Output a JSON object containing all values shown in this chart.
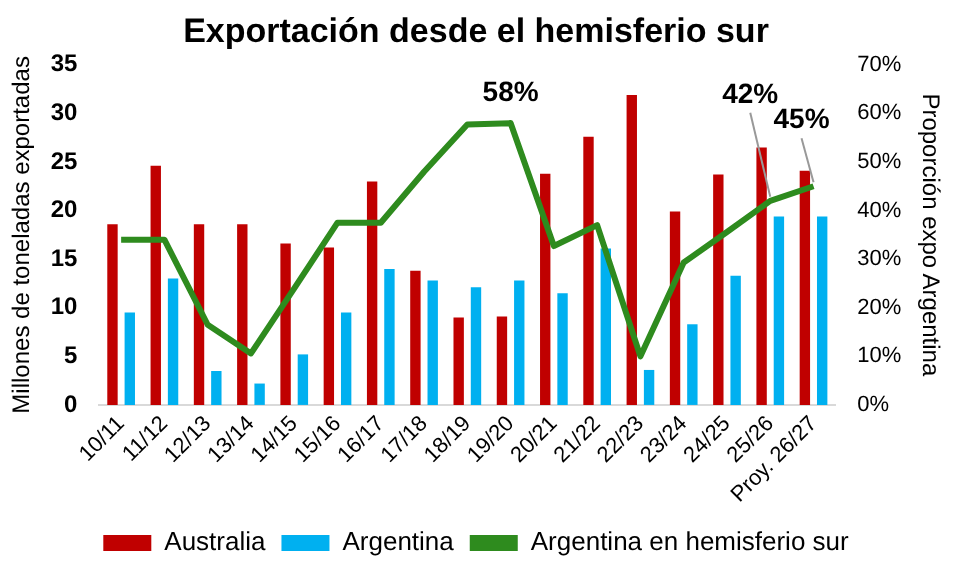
{
  "chart_data": {
    "type": "bar",
    "title": "Exportación desde el hemisferio sur",
    "ylabel": "Millones de toneladas exportadas",
    "y2label": "Proporción expo Argentina",
    "categories": [
      "10/11",
      "11/12",
      "12/13",
      "13/14",
      "14/15",
      "15/16",
      "16/17",
      "17/18",
      "18/19",
      "19/20",
      "20/21",
      "21/22",
      "22/23",
      "23/24",
      "24/25",
      "25/26",
      "Proy. 26/27"
    ],
    "series": [
      {
        "name": "Australia",
        "color": "#c00000",
        "values": [
          18.6,
          24.6,
          18.6,
          18.6,
          16.6,
          16.2,
          23,
          13.8,
          9,
          9.1,
          23.8,
          27.6,
          31.9,
          19.9,
          23.7,
          26.5,
          24.1
        ]
      },
      {
        "name": "Argentina",
        "color": "#00b0f0",
        "values": [
          9.5,
          13,
          3.5,
          2.2,
          5.2,
          9.5,
          14,
          12.8,
          12.1,
          12.8,
          11.5,
          16.1,
          3.6,
          8.3,
          13.3,
          19.4,
          19.4
        ]
      },
      {
        "name": "Argentina en hemisferio sur",
        "type": "line",
        "axis": "y2",
        "color": "#2e8b1e",
        "values": [
          34,
          34,
          16.5,
          10.6,
          24,
          37.5,
          37.5,
          48,
          57.7,
          58,
          32.7,
          37,
          10,
          29.3,
          35.6,
          42,
          45
        ],
        "value_labels": [
          null,
          null,
          null,
          null,
          null,
          null,
          null,
          null,
          null,
          "58%",
          null,
          null,
          null,
          null,
          null,
          "42%",
          "45%"
        ]
      }
    ],
    "ylim": [
      0,
      35
    ],
    "yticks": [
      0,
      5,
      10,
      15,
      20,
      25,
      30,
      35
    ],
    "y2lim": [
      0,
      70
    ],
    "y2ticks": [
      {
        "value": 0,
        "label": "0%"
      },
      {
        "value": 10,
        "label": "10%"
      },
      {
        "value": 20,
        "label": "20%"
      },
      {
        "value": 30,
        "label": "30%"
      },
      {
        "value": 40,
        "label": "40%"
      },
      {
        "value": 50,
        "label": "50%"
      },
      {
        "value": 60,
        "label": "60%"
      },
      {
        "value": 70,
        "label": "70%"
      }
    ],
    "legend": "bottom",
    "grid": false,
    "marker": "none",
    "line_style": "solid"
  }
}
